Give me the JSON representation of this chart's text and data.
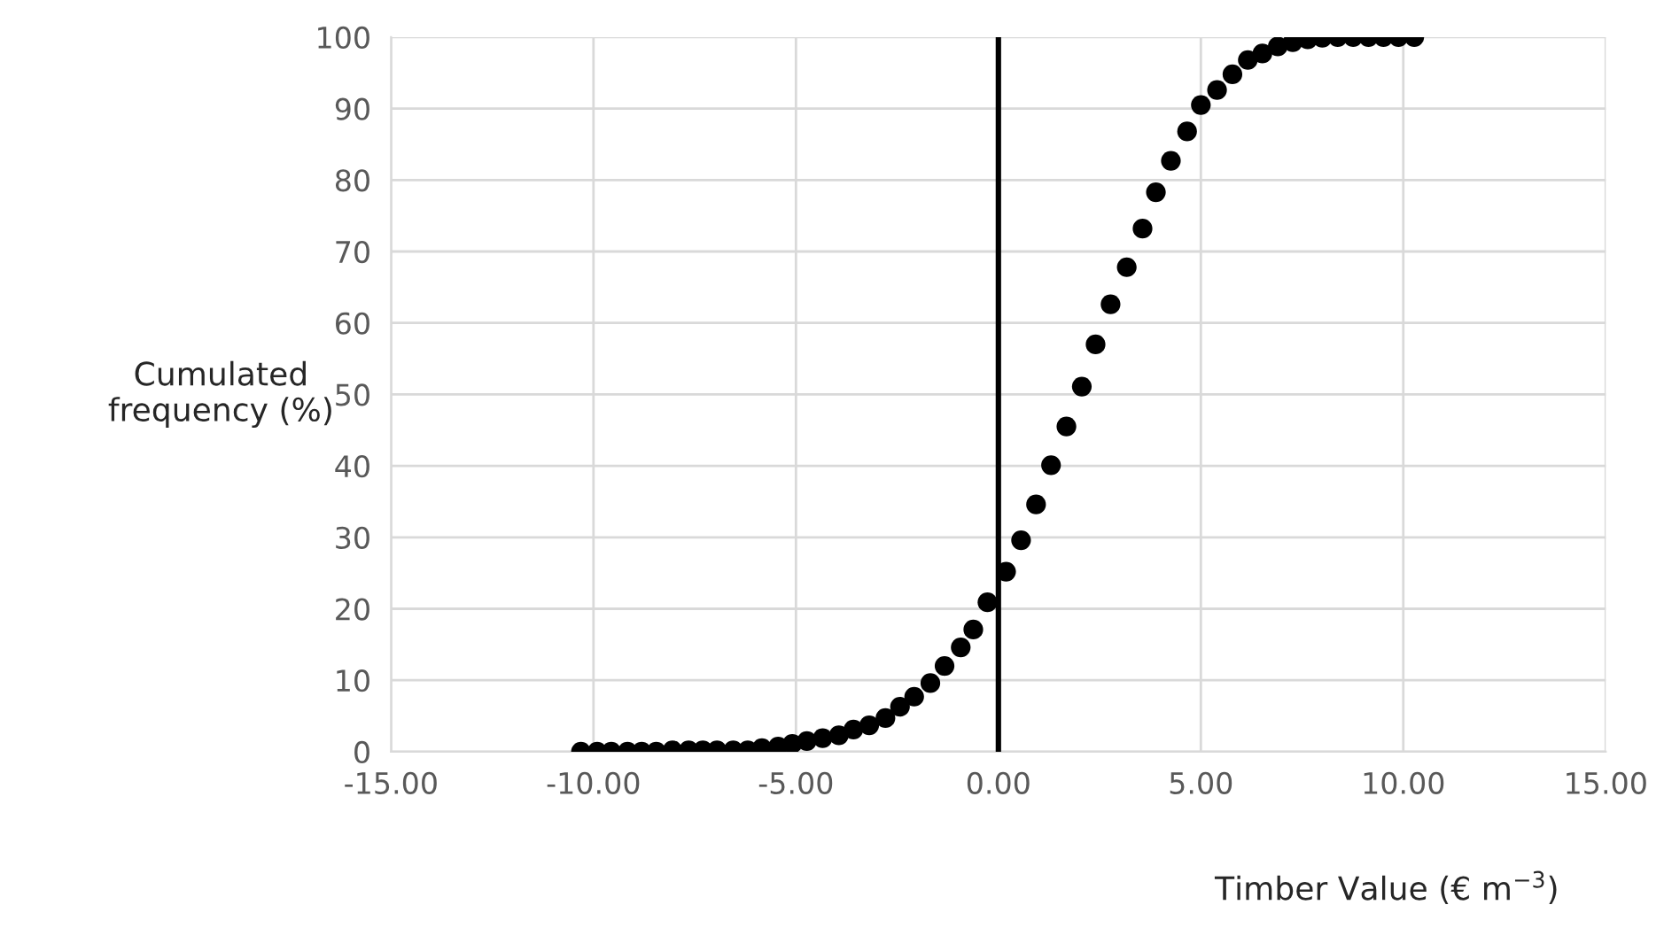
{
  "chart_data": {
    "type": "scatter",
    "xlabel": "Timber Value (€ m$^{−3}$)",
    "ylabel": "Cumulated\nfrequency (%)",
    "x": [
      -10.31,
      -9.91,
      -9.56,
      -9.16,
      -8.81,
      -8.45,
      -8.05,
      -7.65,
      -7.3,
      -6.95,
      -6.55,
      -6.19,
      -5.84,
      -5.44,
      -5.09,
      -4.73,
      -4.34,
      -3.94,
      -3.58,
      -3.19,
      -2.79,
      -2.43,
      -2.08,
      -1.68,
      -1.33,
      -0.93,
      -0.62,
      -0.27,
      0.19,
      0.56,
      0.93,
      1.3,
      1.68,
      2.06,
      2.4,
      2.77,
      3.17,
      3.56,
      3.89,
      4.26,
      4.66,
      5.0,
      5.4,
      5.78,
      6.16,
      6.52,
      6.9,
      7.27,
      7.64,
      8.0,
      8.38,
      8.76,
      9.14,
      9.51,
      9.88,
      10.27
    ],
    "series": [
      {
        "color": "#000000",
        "values": [
          0,
          0,
          0,
          0,
          0,
          0,
          0.2,
          0.2,
          0.2,
          0.2,
          0.2,
          0.2,
          0.5,
          0.7,
          1.1,
          1.5,
          1.9,
          2.3,
          3.1,
          3.7,
          4.7,
          6.3,
          7.7,
          9.6,
          12.0,
          14.6,
          17.1,
          20.9,
          25.2,
          29.6,
          34.6,
          40.1,
          45.5,
          51.1,
          57.0,
          62.6,
          67.8,
          73.2,
          78.3,
          82.7,
          86.8,
          90.5,
          92.6,
          94.8,
          96.8,
          97.7,
          98.7,
          99.3,
          99.7,
          99.9,
          100,
          100,
          100,
          100,
          100,
          100
        ]
      }
    ],
    "xlim": [
      -15,
      15
    ],
    "xticks": [
      {
        "value": -15,
        "label": "-15.00"
      },
      {
        "value": -10,
        "label": "-10.00"
      },
      {
        "value": -5,
        "label": "-5.00"
      },
      {
        "value": 0,
        "label": "0.00"
      },
      {
        "value": 5,
        "label": "5.00"
      },
      {
        "value": 10,
        "label": "10.00"
      },
      {
        "value": 15,
        "label": "15.00"
      }
    ],
    "ylim": [
      0,
      100
    ],
    "yticks": [
      0,
      10,
      20,
      30,
      40,
      50,
      60,
      70,
      80,
      90,
      100
    ],
    "ref_lines": [
      {
        "axis": "x",
        "value": 0,
        "color": "#000000",
        "line_style": "solid"
      }
    ],
    "grid": true,
    "marker": "circle",
    "legend": false
  }
}
